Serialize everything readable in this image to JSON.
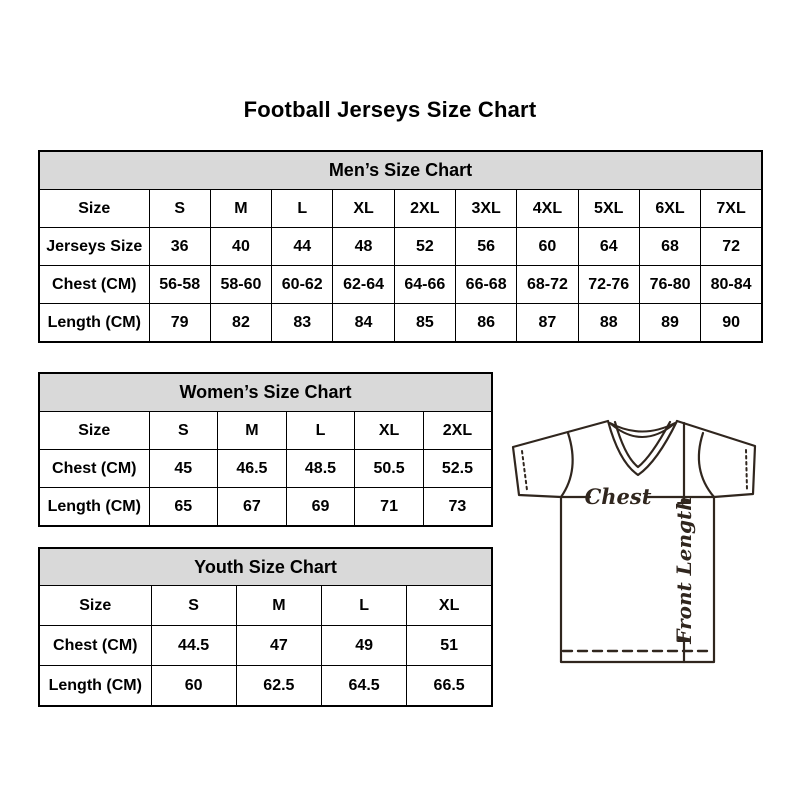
{
  "page_title": "Football Jerseys Size Chart",
  "chart_data": [
    {
      "id": "men",
      "type": "table",
      "title": "Men’s Size Chart",
      "columns": [
        "Size",
        "S",
        "M",
        "L",
        "XL",
        "2XL",
        "3XL",
        "4XL",
        "5XL",
        "6XL",
        "7XL"
      ],
      "rows": [
        [
          "Jerseys Size",
          "36",
          "40",
          "44",
          "48",
          "52",
          "56",
          "60",
          "64",
          "68",
          "72"
        ],
        [
          "Chest (CM)",
          "56-58",
          "58-60",
          "60-62",
          "62-64",
          "64-66",
          "66-68",
          "68-72",
          "72-76",
          "76-80",
          "80-84"
        ],
        [
          "Length (CM)",
          "79",
          "82",
          "83",
          "84",
          "85",
          "86",
          "87",
          "88",
          "89",
          "90"
        ]
      ]
    },
    {
      "id": "women",
      "type": "table",
      "title": "Women’s Size Chart",
      "columns": [
        "Size",
        "S",
        "M",
        "L",
        "XL",
        "2XL"
      ],
      "rows": [
        [
          "Chest (CM)",
          "45",
          "46.5",
          "48.5",
          "50.5",
          "52.5"
        ],
        [
          "Length (CM)",
          "65",
          "67",
          "69",
          "71",
          "73"
        ]
      ]
    },
    {
      "id": "youth",
      "type": "table",
      "title": "Youth Size Chart",
      "columns": [
        "Size",
        "S",
        "M",
        "L",
        "XL"
      ],
      "rows": [
        [
          "Chest (CM)",
          "44.5",
          "47",
          "49",
          "51"
        ],
        [
          "Length (CM)",
          "60",
          "62.5",
          "64.5",
          "66.5"
        ]
      ]
    }
  ],
  "diagram": {
    "chest_label": "Chest",
    "front_length_label": "Front Length"
  },
  "colors": {
    "table_header_bg": "#d9d9d9",
    "table_border": "#000000",
    "text": "#000000",
    "diagram_line": "#30261e"
  }
}
